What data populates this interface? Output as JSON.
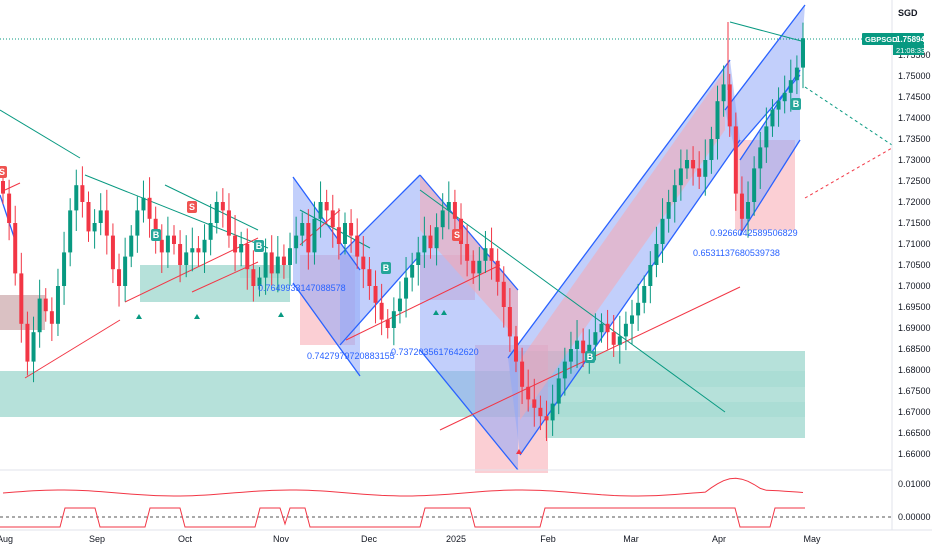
{
  "currency_label": "SGD",
  "price_tag": {
    "symbol": "GBPSGD",
    "price": "1.75894",
    "countdown": "21:08:33",
    "color": "#089981"
  },
  "colors": {
    "up": "#089981",
    "down": "#f23645",
    "channel_blue": "#2962ff",
    "channel_fill_blue": "#8fa8f7",
    "channel_fill_red": "#f7a8b0",
    "zone_teal": "#a9dcd3",
    "trendline": "#089981",
    "oscillator": "#f23645"
  },
  "chart_data": {
    "type": "candlestick",
    "symbol": "GBPSGD",
    "price_axis_ticks": [
      "1.75500",
      "1.75000",
      "1.74500",
      "1.74000",
      "1.73500",
      "1.73000",
      "1.72500",
      "1.72000",
      "1.71500",
      "1.71000",
      "1.70500",
      "1.70000",
      "1.69500",
      "1.69000",
      "1.68500",
      "1.68000",
      "1.67500",
      "1.67000",
      "1.66500",
      "1.66000"
    ],
    "time_axis_ticks": [
      "Aug",
      "Sep",
      "Oct",
      "Nov",
      "Dec",
      "2025",
      "Feb",
      "Mar",
      "Apr",
      "May"
    ],
    "oscillator_ticks": [
      "0.01000",
      "0.00000"
    ],
    "ylim": [
      1.655,
      1.764
    ],
    "close_series": [
      1.722,
      1.715,
      1.703,
      1.691,
      1.682,
      1.689,
      1.697,
      1.694,
      1.691,
      1.7,
      1.708,
      1.718,
      1.724,
      1.72,
      1.713,
      1.715,
      1.718,
      1.712,
      1.704,
      1.7,
      1.707,
      1.712,
      1.718,
      1.721,
      1.716,
      1.711,
      1.708,
      1.712,
      1.71,
      1.705,
      1.708,
      1.709,
      1.708,
      1.711,
      1.715,
      1.72,
      1.718,
      1.712,
      1.708,
      1.71,
      1.704,
      1.7,
      1.702,
      1.708,
      1.703,
      1.707,
      1.705,
      1.709,
      1.712,
      1.715,
      1.708,
      1.716,
      1.72,
      1.718,
      1.714,
      1.71,
      1.715,
      1.712,
      1.707,
      1.704,
      1.7,
      1.696,
      1.692,
      1.69,
      1.694,
      1.697,
      1.702,
      1.705,
      1.708,
      1.712,
      1.709,
      1.714,
      1.718,
      1.72,
      1.716,
      1.71,
      1.706,
      1.703,
      1.706,
      1.709,
      1.706,
      1.701,
      1.695,
      1.688,
      1.682,
      1.676,
      1.673,
      1.671,
      1.669,
      1.668,
      1.672,
      1.678,
      1.682,
      1.685,
      1.687,
      1.684,
      1.686,
      1.689,
      1.691,
      1.689,
      1.686,
      1.688,
      1.691,
      1.693,
      1.696,
      1.7,
      1.705,
      1.71,
      1.716,
      1.72,
      1.724,
      1.728,
      1.73,
      1.728,
      1.726,
      1.73,
      1.735,
      1.744,
      1.748,
      1.738,
      1.722,
      1.716,
      1.72,
      1.728,
      1.733,
      1.738,
      1.742,
      1.744,
      1.746,
      1.749,
      1.752,
      1.759
    ],
    "annotations": [
      "0.7649933147088578",
      "0.7427979720883155",
      "0.7372035617642620",
      "0.9266042589506829",
      "0.6531137680539738"
    ],
    "markers": {
      "buy": "B",
      "sell": "S"
    }
  }
}
